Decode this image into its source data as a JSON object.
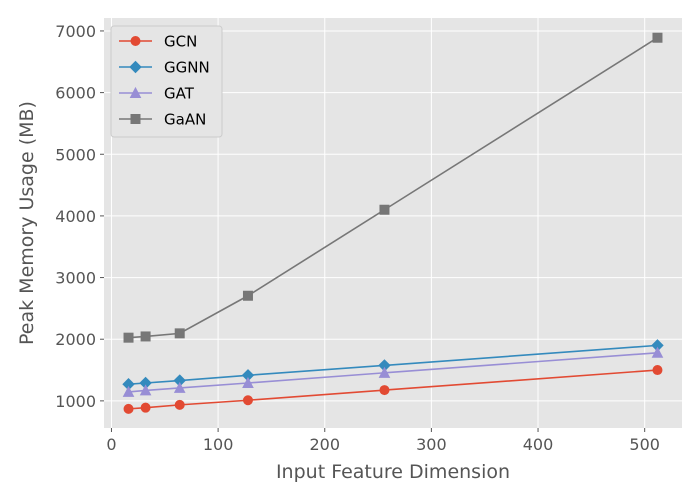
{
  "chart_data": {
    "type": "line",
    "xlabel": "Input Feature Dimension",
    "ylabel": "Peak Memory Usage (MB)",
    "xlim": [
      -7,
      535
    ],
    "ylim": [
      560,
      7210
    ],
    "xticks": [
      0,
      100,
      200,
      300,
      400,
      500
    ],
    "yticks": [
      1000,
      2000,
      3000,
      4000,
      5000,
      6000,
      7000
    ],
    "grid": true,
    "legend_position": "top-left",
    "x": [
      16,
      32,
      64,
      128,
      256,
      512
    ],
    "series": [
      {
        "name": "GCN",
        "marker": "circle",
        "color": "#E24A33",
        "values": [
          870,
          890,
          935,
          1010,
          1175,
          1500
        ]
      },
      {
        "name": "GGNN",
        "marker": "diamond",
        "color": "#348ABD",
        "values": [
          1270,
          1290,
          1330,
          1415,
          1575,
          1900
        ]
      },
      {
        "name": "GAT",
        "marker": "triangle",
        "color": "#988ED5",
        "values": [
          1145,
          1170,
          1210,
          1290,
          1455,
          1780
        ]
      },
      {
        "name": "GaAN",
        "marker": "square",
        "color": "#777777",
        "values": [
          2025,
          2045,
          2095,
          2705,
          4100,
          6890
        ]
      }
    ]
  }
}
